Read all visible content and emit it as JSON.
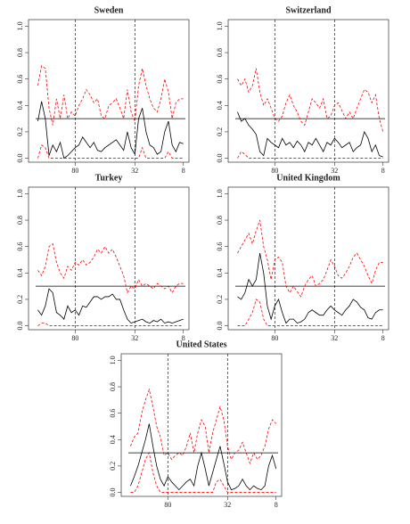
{
  "chart_data": [
    {
      "type": "line",
      "title": "Sweden",
      "x": [
        0,
        1,
        2,
        3,
        4,
        5,
        6,
        7,
        8,
        9,
        10,
        11,
        12,
        13,
        14,
        15,
        16,
        17,
        18,
        19,
        20,
        21,
        22,
        23,
        24,
        25,
        26,
        27,
        28,
        29,
        30,
        31,
        32,
        33,
        34,
        35,
        36,
        37,
        38,
        39
      ],
      "xlim": [
        -2.5,
        40.5
      ],
      "xticks": [
        {
          "value": 10,
          "label": "80"
        },
        {
          "value": 26,
          "label": "32"
        },
        {
          "value": 39,
          "label": "8"
        }
      ],
      "ylim": [
        -0.03,
        1.05
      ],
      "yticks": [
        {
          "value": 0,
          "label": "0.0"
        },
        {
          "value": 0.2,
          "label": "0.2"
        },
        {
          "value": 0.4,
          "label": "0.4"
        },
        {
          "value": 0.6,
          "label": "0.6"
        },
        {
          "value": 0.8,
          "label": "0.8"
        },
        {
          "value": 1,
          "label": "1.0"
        }
      ],
      "hline": 0.3,
      "vlines": [
        10,
        26
      ],
      "series": [
        {
          "color": "#000000",
          "dashed": false,
          "values": [
            0.28,
            0.43,
            0.3,
            0.02,
            0.1,
            0.05,
            0.12,
            0.0,
            0.02,
            0.05,
            0.08,
            0.1,
            0.16,
            0.12,
            0.08,
            0.12,
            0.06,
            0.05,
            0.08,
            0.1,
            0.12,
            0.14,
            0.1,
            0.06,
            0.2,
            0.08,
            0.03,
            0.3,
            0.38,
            0.2,
            0.1,
            0.08,
            0.03,
            0.05,
            0.2,
            0.28,
            0.1,
            0.05,
            0.12,
            0.11
          ]
        },
        {
          "color": "#ff0000",
          "dashed": true,
          "values": [
            0.55,
            0.7,
            0.68,
            0.38,
            0.25,
            0.45,
            0.3,
            0.48,
            0.3,
            0.35,
            0.32,
            0.4,
            0.45,
            0.52,
            0.48,
            0.42,
            0.45,
            0.32,
            0.3,
            0.4,
            0.42,
            0.45,
            0.38,
            0.3,
            0.52,
            0.35,
            0.28,
            0.55,
            0.68,
            0.55,
            0.45,
            0.38,
            0.35,
            0.45,
            0.6,
            0.5,
            0.3,
            0.42,
            0.45,
            0.45
          ]
        },
        {
          "color": "#ff0000",
          "dashed": true,
          "values": [
            0,
            0.1,
            0.08,
            0,
            0,
            0,
            0,
            0,
            0,
            0,
            0,
            0,
            0,
            0,
            0,
            0,
            0,
            0,
            0,
            0,
            0,
            0,
            0,
            0,
            0,
            0,
            0,
            0,
            0.08,
            0,
            0,
            0,
            0,
            0,
            0,
            0.05,
            0,
            0,
            0,
            0
          ]
        }
      ]
    },
    {
      "type": "line",
      "title": "Switzerland",
      "x": [
        0,
        1,
        2,
        3,
        4,
        5,
        6,
        7,
        8,
        9,
        10,
        11,
        12,
        13,
        14,
        15,
        16,
        17,
        18,
        19,
        20,
        21,
        22,
        23,
        24,
        25,
        26,
        27,
        28,
        29,
        30,
        31,
        32,
        33,
        34,
        35,
        36,
        37,
        38,
        39
      ],
      "xlim": [
        -2.5,
        40.5
      ],
      "xticks": [
        {
          "value": 10,
          "label": "80"
        },
        {
          "value": 26,
          "label": "32"
        },
        {
          "value": 39,
          "label": "8"
        }
      ],
      "ylim": [
        -0.03,
        1.05
      ],
      "yticks": [
        {
          "value": 0,
          "label": "0.0"
        },
        {
          "value": 0.2,
          "label": "0.2"
        },
        {
          "value": 0.4,
          "label": "0.4"
        },
        {
          "value": 0.6,
          "label": "0.6"
        },
        {
          "value": 0.8,
          "label": "0.8"
        },
        {
          "value": 1,
          "label": "1.0"
        }
      ],
      "hline": 0.3,
      "vlines": [
        10,
        26
      ],
      "series": [
        {
          "color": "#000000",
          "dashed": false,
          "values": [
            0.35,
            0.28,
            0.3,
            0.25,
            0.22,
            0.18,
            0.05,
            0.02,
            0.15,
            0.12,
            0.1,
            0.08,
            0.15,
            0.1,
            0.12,
            0.08,
            0.13,
            0.1,
            0.05,
            0.12,
            0.1,
            0.15,
            0.1,
            0.05,
            0.12,
            0.1,
            0.15,
            0.12,
            0.08,
            0.1,
            0.12,
            0.05,
            0.08,
            0.1,
            0.2,
            0.15,
            0.05,
            0.1,
            0.02,
            0.01
          ]
        },
        {
          "color": "#ff0000",
          "dashed": true,
          "values": [
            0.6,
            0.55,
            0.6,
            0.5,
            0.55,
            0.68,
            0.5,
            0.4,
            0.45,
            0.38,
            0.3,
            0.28,
            0.32,
            0.42,
            0.48,
            0.4,
            0.35,
            0.28,
            0.25,
            0.35,
            0.45,
            0.42,
            0.38,
            0.45,
            0.3,
            0.32,
            0.4,
            0.42,
            0.36,
            0.3,
            0.35,
            0.3,
            0.38,
            0.45,
            0.52,
            0.5,
            0.42,
            0.48,
            0.3,
            0.2
          ]
        },
        {
          "color": "#ff0000",
          "dashed": true,
          "values": [
            0,
            0.05,
            0.03,
            0,
            0,
            0,
            0,
            0,
            0,
            0,
            0,
            0,
            0,
            0,
            0,
            0,
            0,
            0,
            0,
            0,
            0,
            0,
            0,
            0,
            0,
            0,
            0,
            0,
            0,
            0,
            0,
            0,
            0,
            0,
            0,
            0,
            0,
            0,
            0,
            0
          ]
        }
      ]
    },
    {
      "type": "line",
      "title": "Turkey",
      "x": [
        0,
        1,
        2,
        3,
        4,
        5,
        6,
        7,
        8,
        9,
        10,
        11,
        12,
        13,
        14,
        15,
        16,
        17,
        18,
        19,
        20,
        21,
        22,
        23,
        24,
        25,
        26,
        27,
        28,
        29,
        30,
        31,
        32,
        33,
        34,
        35,
        36,
        37,
        38,
        39
      ],
      "xlim": [
        -2.5,
        40.5
      ],
      "xticks": [
        {
          "value": 10,
          "label": "80"
        },
        {
          "value": 26,
          "label": "32"
        },
        {
          "value": 39,
          "label": "8"
        }
      ],
      "ylim": [
        -0.03,
        1.05
      ],
      "yticks": [
        {
          "value": 0,
          "label": "0.0"
        },
        {
          "value": 0.2,
          "label": "0.2"
        },
        {
          "value": 0.4,
          "label": "0.4"
        },
        {
          "value": 0.6,
          "label": "0.6"
        },
        {
          "value": 0.8,
          "label": "0.8"
        },
        {
          "value": 1,
          "label": "1.0"
        }
      ],
      "hline": 0.3,
      "vlines": [
        10,
        26
      ],
      "series": [
        {
          "color": "#000000",
          "dashed": false,
          "values": [
            0.12,
            0.08,
            0.15,
            0.28,
            0.25,
            0.1,
            0.08,
            0.05,
            0.15,
            0.1,
            0.12,
            0.08,
            0.15,
            0.14,
            0.18,
            0.22,
            0.22,
            0.2,
            0.22,
            0.22,
            0.24,
            0.2,
            0.2,
            0.12,
            0.05,
            0.02,
            0.03,
            0.04,
            0.05,
            0.03,
            0.02,
            0.04,
            0.03,
            0.05,
            0.02,
            0.03,
            0.02,
            0.03,
            0.04,
            0.05
          ]
        },
        {
          "color": "#ff0000",
          "dashed": true,
          "values": [
            0.42,
            0.38,
            0.45,
            0.6,
            0.62,
            0.48,
            0.4,
            0.36,
            0.45,
            0.42,
            0.48,
            0.46,
            0.5,
            0.46,
            0.48,
            0.52,
            0.58,
            0.55,
            0.6,
            0.55,
            0.58,
            0.52,
            0.45,
            0.38,
            0.25,
            0.3,
            0.28,
            0.35,
            0.3,
            0.32,
            0.3,
            0.28,
            0.32,
            0.3,
            0.28,
            0.3,
            0.25,
            0.3,
            0.32,
            0.32
          ]
        },
        {
          "color": "#ff0000",
          "dashed": true,
          "values": [
            0,
            0.02,
            0.02,
            0,
            0,
            0,
            0,
            0,
            0,
            0,
            0,
            0,
            0,
            0,
            0,
            0,
            0,
            0,
            0,
            0,
            0,
            0,
            0,
            0,
            0,
            0,
            0,
            0,
            0,
            0,
            0,
            0,
            0,
            0,
            0,
            0,
            0,
            0,
            0,
            0
          ]
        }
      ]
    },
    {
      "type": "line",
      "title": "United Kingdom",
      "x": [
        0,
        1,
        2,
        3,
        4,
        5,
        6,
        7,
        8,
        9,
        10,
        11,
        12,
        13,
        14,
        15,
        16,
        17,
        18,
        19,
        20,
        21,
        22,
        23,
        24,
        25,
        26,
        27,
        28,
        29,
        30,
        31,
        32,
        33,
        34,
        35,
        36,
        37,
        38,
        39
      ],
      "xlim": [
        -2.5,
        40.5
      ],
      "xticks": [
        {
          "value": 10,
          "label": "80"
        },
        {
          "value": 26,
          "label": "32"
        },
        {
          "value": 39,
          "label": "8"
        }
      ],
      "ylim": [
        -0.03,
        1.05
      ],
      "yticks": [
        {
          "value": 0,
          "label": "0.0"
        },
        {
          "value": 0.2,
          "label": "0.2"
        },
        {
          "value": 0.4,
          "label": "0.4"
        },
        {
          "value": 0.6,
          "label": "0.6"
        },
        {
          "value": 0.8,
          "label": "0.8"
        },
        {
          "value": 1,
          "label": "1.0"
        }
      ],
      "hline": 0.3,
      "vlines": [
        10,
        26
      ],
      "series": [
        {
          "color": "#000000",
          "dashed": false,
          "values": [
            0.22,
            0.2,
            0.25,
            0.35,
            0.3,
            0.35,
            0.55,
            0.4,
            0.15,
            0.05,
            0.15,
            0.2,
            0.1,
            0.02,
            0.05,
            0.05,
            0.02,
            0.03,
            0.05,
            0.1,
            0.12,
            0.1,
            0.08,
            0.08,
            0.12,
            0.15,
            0.12,
            0.1,
            0.08,
            0.12,
            0.15,
            0.2,
            0.18,
            0.14,
            0.12,
            0.06,
            0.05,
            0.1,
            0.12,
            0.12
          ]
        },
        {
          "color": "#ff0000",
          "dashed": true,
          "values": [
            0.55,
            0.6,
            0.65,
            0.7,
            0.62,
            0.72,
            0.8,
            0.6,
            0.5,
            0.35,
            0.5,
            0.52,
            0.48,
            0.3,
            0.25,
            0.3,
            0.26,
            0.22,
            0.3,
            0.35,
            0.38,
            0.3,
            0.32,
            0.35,
            0.42,
            0.5,
            0.45,
            0.38,
            0.36,
            0.4,
            0.45,
            0.52,
            0.55,
            0.5,
            0.45,
            0.38,
            0.32,
            0.42,
            0.48,
            0.48
          ]
        },
        {
          "color": "#ff0000",
          "dashed": true,
          "values": [
            0,
            0,
            0,
            0.05,
            0.1,
            0.2,
            0.18,
            0.05,
            0,
            0,
            0,
            0,
            0,
            0,
            0,
            0,
            0,
            0,
            0,
            0,
            0,
            0,
            0,
            0,
            0,
            0,
            0,
            0,
            0,
            0,
            0,
            0,
            0,
            0,
            0,
            0,
            0,
            0,
            0,
            0
          ]
        }
      ]
    },
    {
      "type": "line",
      "title": "United States",
      "x": [
        0,
        1,
        2,
        3,
        4,
        5,
        6,
        7,
        8,
        9,
        10,
        11,
        12,
        13,
        14,
        15,
        16,
        17,
        18,
        19,
        20,
        21,
        22,
        23,
        24,
        25,
        26,
        27,
        28,
        29,
        30,
        31,
        32,
        33,
        34,
        35,
        36,
        37,
        38,
        39
      ],
      "xlim": [
        -2.5,
        40.5
      ],
      "xticks": [
        {
          "value": 10,
          "label": "80"
        },
        {
          "value": 26,
          "label": "32"
        },
        {
          "value": 39,
          "label": "8"
        }
      ],
      "ylim": [
        -0.03,
        1.05
      ],
      "yticks": [
        {
          "value": 0,
          "label": "0.0"
        },
        {
          "value": 0.2,
          "label": "0.2"
        },
        {
          "value": 0.4,
          "label": "0.4"
        },
        {
          "value": 0.6,
          "label": "0.6"
        },
        {
          "value": 0.8,
          "label": "0.8"
        },
        {
          "value": 1,
          "label": "1.0"
        }
      ],
      "hline": 0.3,
      "vlines": [
        10,
        26
      ],
      "series": [
        {
          "color": "#000000",
          "dashed": false,
          "values": [
            0.05,
            0.12,
            0.2,
            0.3,
            0.4,
            0.52,
            0.35,
            0.2,
            0.1,
            0.05,
            0.12,
            0.08,
            0.05,
            0.02,
            0.05,
            0.08,
            0.1,
            0.05,
            0.2,
            0.3,
            0.18,
            0.05,
            0.15,
            0.25,
            0.35,
            0.22,
            0.08,
            0.02,
            0.03,
            0.05,
            0.1,
            0.05,
            0.02,
            0.05,
            0.03,
            0.02,
            0.05,
            0.2,
            0.28,
            0.18
          ]
        },
        {
          "color": "#ff0000",
          "dashed": true,
          "values": [
            0.35,
            0.42,
            0.45,
            0.6,
            0.7,
            0.78,
            0.65,
            0.5,
            0.42,
            0.28,
            0.3,
            0.25,
            0.28,
            0.3,
            0.28,
            0.35,
            0.45,
            0.3,
            0.45,
            0.55,
            0.5,
            0.3,
            0.45,
            0.55,
            0.65,
            0.55,
            0.35,
            0.25,
            0.3,
            0.32,
            0.38,
            0.3,
            0.22,
            0.3,
            0.25,
            0.28,
            0.35,
            0.48,
            0.55,
            0.52
          ]
        },
        {
          "color": "#ff0000",
          "dashed": true,
          "values": [
            0,
            0,
            0.05,
            0.15,
            0.25,
            0.3,
            0.15,
            0.05,
            0,
            0,
            0,
            0,
            0,
            0,
            0,
            0,
            0,
            0,
            0,
            0,
            0,
            0,
            0,
            0.08,
            0.1,
            0.05,
            0,
            0,
            0,
            0,
            0,
            0,
            0,
            0,
            0,
            0,
            0,
            0,
            0,
            0
          ]
        }
      ]
    }
  ]
}
